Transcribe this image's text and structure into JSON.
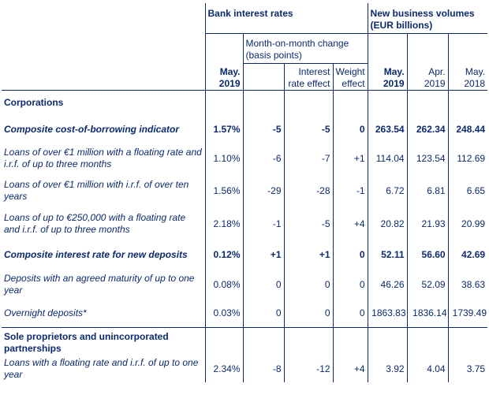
{
  "header": {
    "bank_interest_rates": "Bank interest rates",
    "new_business_volumes": "New business volumes (EUR billions)",
    "mom_change": "Month-on-month change (basis points)",
    "interest_rate_effect": "Interest rate effect",
    "weight_effect": "Weight effect",
    "col_rate_may2019": "May. 2019",
    "col_vol_may2019": "May. 2019",
    "col_vol_apr2019": "Apr. 2019",
    "col_vol_may2018": "May. 2018"
  },
  "sections": [
    {
      "title": "Corporations",
      "rows": [
        {
          "label": "Composite cost-of-borrowing indicator",
          "rate": "1.57%",
          "change": "-5",
          "ire": "-5",
          "we": "0",
          "v1": "263.54",
          "v2": "262.34",
          "v3": "248.44"
        },
        {
          "label": "Loans of over €1 million with a floating rate and i.r.f. of up to three months",
          "rate": "1.10%",
          "change": "-6",
          "ire": "-7",
          "we": "+1",
          "v1": "114.04",
          "v2": "123.54",
          "v3": "112.69"
        },
        {
          "label": "Loans of over €1 million with i.r.f. of over ten years",
          "rate": "1.56%",
          "change": "-29",
          "ire": "-28",
          "we": "-1",
          "v1": "6.72",
          "v2": "6.81",
          "v3": "6.65"
        },
        {
          "label": "Loans of up to €250,000 with a floating rate and i.r.f. of up to three months",
          "rate": "2.18%",
          "change": "-1",
          "ire": "-5",
          "we": "+4",
          "v1": "20.82",
          "v2": "21.93",
          "v3": "20.99"
        },
        {
          "label": "Composite interest rate for new deposits",
          "rate": "0.12%",
          "change": "+1",
          "ire": "+1",
          "we": "0",
          "v1": "52.11",
          "v2": "56.60",
          "v3": "42.69"
        },
        {
          "label": "Deposits with an agreed maturity of up to one year",
          "rate": "0.08%",
          "change": "0",
          "ire": "0",
          "we": "0",
          "v1": "46.26",
          "v2": "52.09",
          "v3": "38.63"
        },
        {
          "label": "Overnight deposits*",
          "rate": "0.03%",
          "change": "0",
          "ire": "0",
          "we": "0",
          "v1": "1863.83",
          "v2": "1836.14",
          "v3": "1739.49"
        }
      ]
    },
    {
      "title": "Sole proprietors and unincorporated partnerships",
      "rows": [
        {
          "label": "Loans with a floating rate and i.r.f. of up to one year",
          "rate": "2.34%",
          "change": "-8",
          "ire": "-12",
          "we": "+4",
          "v1": "3.92",
          "v2": "4.04",
          "v3": "3.75"
        }
      ]
    }
  ]
}
